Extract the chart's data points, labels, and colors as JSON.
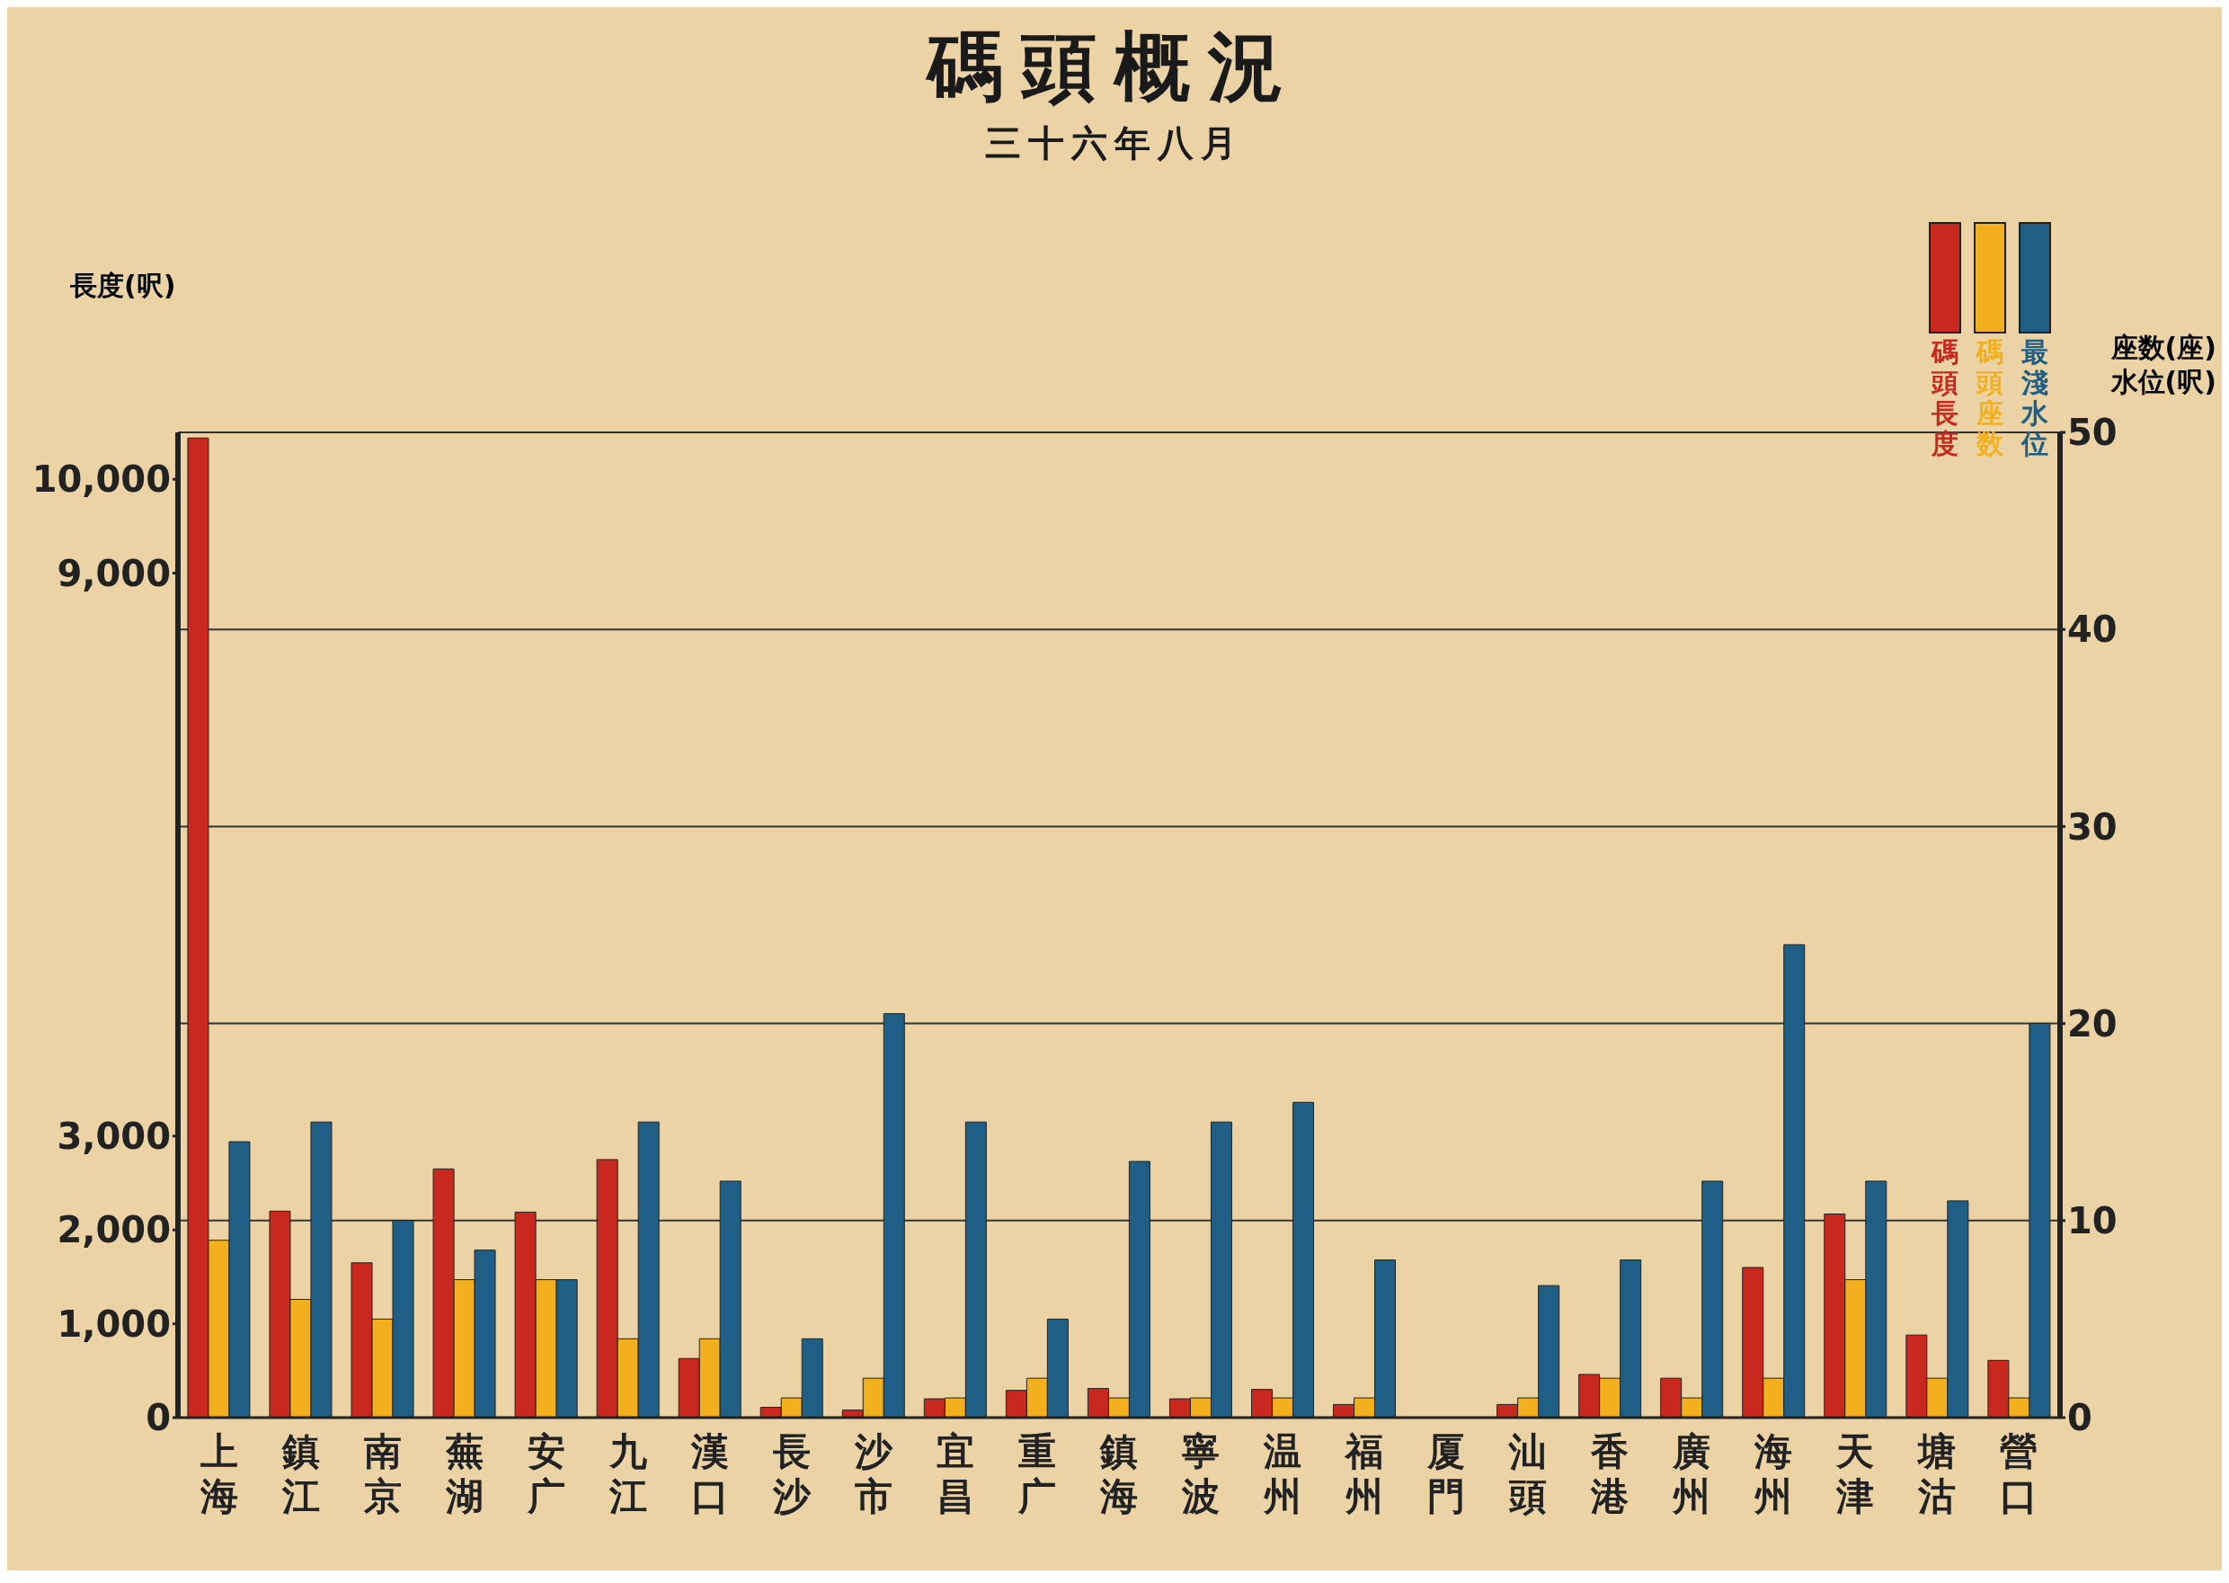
{
  "chart_data": {
    "type": "bar",
    "title": "碼頭概況",
    "subtitle": "三十六年八月",
    "ylabel": "長度(呎)",
    "y2label": "座数(座)\n水位(呎)",
    "categories": [
      "上海",
      "鎮江",
      "南京",
      "蕪湖",
      "安广",
      "九江",
      "漢口",
      "長沙",
      "沙市",
      "宜昌",
      "重广",
      "鎮海",
      "寧波",
      "温州",
      "福州",
      "厦門",
      "汕頭",
      "香港",
      "廣州",
      "海州",
      "天津",
      "塘沽",
      "營口"
    ],
    "series": [
      {
        "name": "碼頭長度",
        "color": "#c8281e",
        "values": [
          10440,
          2200,
          1650,
          2650,
          2190,
          2750,
          630,
          110,
          80,
          200,
          290,
          310,
          200,
          300,
          140,
          null,
          140,
          460,
          420,
          1600,
          2170,
          880,
          610
        ]
      },
      {
        "name": "碼頭座数",
        "color": "#f2b01e",
        "axis": "y2",
        "values": [
          9,
          6,
          5,
          7,
          7,
          4,
          4,
          1,
          2,
          1,
          2,
          1,
          1,
          1,
          1,
          null,
          1,
          2,
          1,
          2,
          7,
          2,
          1
        ]
      },
      {
        "name": "最淺水位",
        "color": "#1f5f86",
        "axis": "y2",
        "values": [
          14,
          15,
          10,
          8.5,
          7,
          15,
          12,
          4,
          20.5,
          15,
          5,
          13,
          15,
          16,
          8,
          null,
          6.7,
          8,
          12,
          24,
          12,
          11,
          20
        ]
      }
    ],
    "ylim": [
      0,
      10500
    ],
    "yticks": [
      0,
      {
        "value": 1000,
        "label": "1,000"
      },
      {
        "value": 2000,
        "label": "2,000"
      },
      {
        "value": 3000,
        "label": "3,000"
      },
      {
        "value": 9000,
        "label": "9,000"
      },
      {
        "value": 10000,
        "label": "10,000"
      }
    ],
    "y2lim": [
      0,
      50
    ],
    "y2ticks": [
      0,
      10,
      20,
      30,
      40,
      50
    ],
    "grid": "y",
    "legend": "top right"
  }
}
